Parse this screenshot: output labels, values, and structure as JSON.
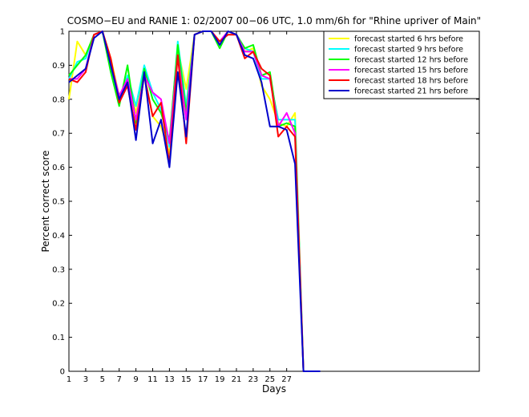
{
  "chart_data": {
    "type": "line",
    "title": "COSMO−EU and RANIE 1: 02/2007 00−06 UTC, 1.0 mm/6h for \"Rhine upriver of Main\"",
    "xlabel": "Days",
    "ylabel": "Percent correct score",
    "xlim": [
      1,
      50
    ],
    "ylim": [
      0,
      1
    ],
    "xticks": [
      "1",
      "3",
      "5",
      "7",
      "9",
      "11",
      "13",
      "15",
      "17",
      "19",
      "21",
      "23",
      "25",
      "27"
    ],
    "yticks": [
      "0",
      "0.1",
      "0.2",
      "0.3",
      "0.4",
      "0.5",
      "0.6",
      "0.7",
      "0.8",
      "0.9",
      "1"
    ],
    "grid": false,
    "legend_position": "top-right",
    "x": [
      1,
      2,
      3,
      4,
      5,
      6,
      7,
      8,
      9,
      10,
      11,
      12,
      13,
      14,
      15,
      16,
      17,
      18,
      19,
      20,
      21,
      22,
      23,
      24,
      25,
      26,
      27,
      28,
      29,
      30,
      31
    ],
    "series": [
      {
        "name": "forecast started 6 hrs before",
        "color": "#ffff00",
        "values": [
          0.8,
          0.97,
          0.93,
          0.99,
          1.0,
          0.92,
          0.81,
          0.86,
          0.76,
          0.87,
          0.75,
          0.72,
          0.64,
          0.95,
          0.83,
          0.99,
          1.0,
          1.0,
          0.96,
          1.0,
          0.99,
          0.94,
          0.95,
          0.84,
          0.8,
          0.73,
          0.72,
          0.76,
          0,
          0,
          0
        ]
      },
      {
        "name": "forecast started 9 hrs before",
        "color": "#00ffff",
        "values": [
          0.86,
          0.91,
          0.92,
          0.99,
          1.0,
          0.9,
          0.8,
          0.87,
          0.78,
          0.9,
          0.82,
          0.77,
          0.66,
          0.97,
          0.78,
          0.99,
          1.0,
          1.0,
          0.96,
          1.0,
          0.99,
          0.95,
          0.94,
          0.86,
          0.86,
          0.74,
          0.74,
          0.74,
          0,
          0,
          0
        ]
      },
      {
        "name": "forecast started 12 hrs before",
        "color": "#00ff00",
        "values": [
          0.87,
          0.9,
          0.93,
          0.99,
          1.0,
          0.88,
          0.78,
          0.9,
          0.73,
          0.89,
          0.8,
          0.76,
          0.68,
          0.96,
          0.76,
          0.99,
          1.0,
          1.0,
          0.95,
          1.0,
          0.99,
          0.95,
          0.96,
          0.87,
          0.88,
          0.72,
          0.73,
          0.72,
          0,
          0,
          0
        ]
      },
      {
        "name": "forecast started 15 hrs before",
        "color": "#ff00ff",
        "values": [
          0.86,
          0.86,
          0.89,
          0.99,
          1.0,
          0.91,
          0.81,
          0.86,
          0.74,
          0.87,
          0.82,
          0.8,
          0.67,
          0.93,
          0.74,
          0.99,
          1.0,
          1.0,
          0.97,
          1.0,
          0.99,
          0.94,
          0.94,
          0.87,
          0.86,
          0.72,
          0.76,
          0.7,
          0,
          0,
          0
        ]
      },
      {
        "name": "forecast started 18 hrs before",
        "color": "#ff0000",
        "values": [
          0.86,
          0.85,
          0.88,
          0.99,
          1.0,
          0.92,
          0.79,
          0.84,
          0.71,
          0.87,
          0.75,
          0.79,
          0.61,
          0.93,
          0.67,
          0.99,
          1.0,
          1.0,
          0.97,
          0.99,
          0.99,
          0.92,
          0.94,
          0.89,
          0.87,
          0.69,
          0.72,
          0.69,
          0,
          0,
          0
        ]
      },
      {
        "name": "forecast started 21 hrs before",
        "color": "#0000cc",
        "values": [
          0.85,
          0.87,
          0.89,
          0.98,
          1.0,
          0.9,
          0.8,
          0.85,
          0.68,
          0.88,
          0.67,
          0.74,
          0.6,
          0.88,
          0.69,
          0.99,
          1.0,
          1.0,
          0.96,
          1.0,
          0.99,
          0.93,
          0.92,
          0.85,
          0.72,
          0.72,
          0.71,
          0.61,
          0,
          0,
          0
        ]
      }
    ]
  }
}
